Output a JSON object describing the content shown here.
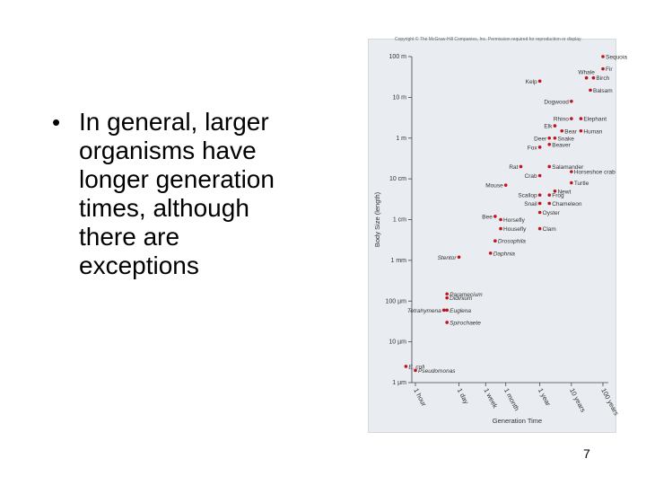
{
  "slide": {
    "bullet_lines": [
      "In general, larger",
      "organisms have",
      "longer generation",
      "times, although",
      "there are",
      "exceptions"
    ],
    "bullet_symbol": "•",
    "page_number": "7",
    "copyright": "Copyright © The McGraw-Hill Companies, Inc. Permission required for reproduction or display."
  },
  "chart_data": {
    "type": "scatter",
    "xlabel": "Generation Time",
    "ylabel": "Body Size (length)",
    "x_ticks": [
      "1 hour",
      "1 day",
      "1 week",
      "1 month",
      "1 year",
      "10 years",
      "100 years"
    ],
    "y_ticks": [
      "100 m",
      "10 m",
      "1 m",
      "10 cm",
      "1 cm",
      "1 mm",
      "100 µm",
      "10 µm",
      "1 µm"
    ],
    "y_scale": "log",
    "grid": false,
    "point_color": "#c0141c",
    "points": [
      {
        "label": "Sequoia",
        "x": "100 years",
        "y": "100 m"
      },
      {
        "label": "Fir",
        "x": "100 years",
        "y": "50 m"
      },
      {
        "label": "Whale",
        "x": "30 years",
        "y": "30 m"
      },
      {
        "label": "Birch",
        "x": "50 years",
        "y": "30 m"
      },
      {
        "label": "Kelp",
        "x": "1 year",
        "y": "25 m"
      },
      {
        "label": "Balsam",
        "x": "40 years",
        "y": "15 m"
      },
      {
        "label": "Dogwood",
        "x": "10 years",
        "y": "8 m"
      },
      {
        "label": "Rhino",
        "x": "10 years",
        "y": "3 m"
      },
      {
        "label": "Elephant",
        "x": "20 years",
        "y": "3 m"
      },
      {
        "label": "Elk",
        "x": "3 years",
        "y": "2 m"
      },
      {
        "label": "Bear",
        "x": "5 years",
        "y": "1.5 m"
      },
      {
        "label": "Human",
        "x": "20 years",
        "y": "1.5 m"
      },
      {
        "label": "Deer",
        "x": "2 years",
        "y": "1 m"
      },
      {
        "label": "Snake",
        "x": "3 years",
        "y": "1 m"
      },
      {
        "label": "Fox",
        "x": "1 year",
        "y": "60 cm"
      },
      {
        "label": "Beaver",
        "x": "2 years",
        "y": "70 cm"
      },
      {
        "label": "Salamander",
        "x": "2 years",
        "y": "20 cm"
      },
      {
        "label": "Rat",
        "x": "3 months",
        "y": "20 cm"
      },
      {
        "label": "Horseshoe crab",
        "x": "10 years",
        "y": "15 cm"
      },
      {
        "label": "Crab",
        "x": "1 year",
        "y": "12 cm"
      },
      {
        "label": "Turtle",
        "x": "10 years",
        "y": "8 cm"
      },
      {
        "label": "Mouse",
        "x": "1 month",
        "y": "7 cm"
      },
      {
        "label": "Newt",
        "x": "3 years",
        "y": "5 cm"
      },
      {
        "label": "Scallop",
        "x": "1 year",
        "y": "4 cm"
      },
      {
        "label": "Frog",
        "x": "2 years",
        "y": "4 cm"
      },
      {
        "label": "Snail",
        "x": "1 year",
        "y": "2.5 cm"
      },
      {
        "label": "Chameleon",
        "x": "2 years",
        "y": "2.5 cm"
      },
      {
        "label": "Oyster",
        "x": "1 year",
        "y": "1.5 cm"
      },
      {
        "label": "Bee",
        "x": "2 weeks",
        "y": "1.2 cm"
      },
      {
        "label": "Horsefly",
        "x": "3 weeks",
        "y": "1 cm"
      },
      {
        "label": "Housefly",
        "x": "3 weeks",
        "y": "6 mm"
      },
      {
        "label": "Clam",
        "x": "1 year",
        "y": "6 mm"
      },
      {
        "label": "Drosophila",
        "x": "2 weeks",
        "y": "3 mm"
      },
      {
        "label": "Daphnia",
        "x": "10 days",
        "y": "1.5 mm"
      },
      {
        "label": "Stentor",
        "x": "1 day",
        "y": "1.2 mm"
      },
      {
        "label": "Paramecium",
        "x": "10 hours",
        "y": "150 µm"
      },
      {
        "label": "Didinium",
        "x": "10 hours",
        "y": "120 µm"
      },
      {
        "label": "Tetrahymena",
        "x": "8 hours",
        "y": "60 µm"
      },
      {
        "label": "Euglena",
        "x": "10 hours",
        "y": "60 µm"
      },
      {
        "label": "Spirochaete",
        "x": "10 hours",
        "y": "30 µm"
      },
      {
        "label": "E. coli",
        "x": "30 minutes",
        "y": "2.5 µm"
      },
      {
        "label": "Pseudomonas",
        "x": "1 hour",
        "y": "2 µm"
      }
    ]
  }
}
